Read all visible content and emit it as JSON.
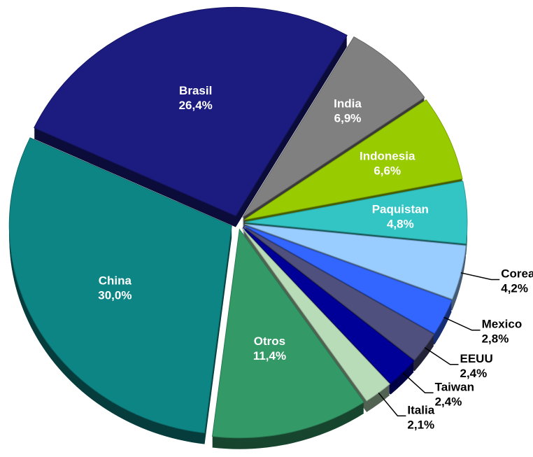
{
  "chart_data": {
    "type": "pie",
    "categories": [
      "Brasil",
      "India",
      "Indonesia",
      "Paquistan",
      "Corea",
      "Mexico",
      "EEUU",
      "Taiwan",
      "Italia",
      "Otros",
      "China"
    ],
    "values": [
      26.4,
      6.9,
      6.6,
      4.8,
      4.2,
      2.8,
      2.4,
      2.4,
      2.1,
      11.4,
      30.0
    ],
    "value_labels": [
      "26,4%",
      "6,9%",
      "6,6%",
      "4,8%",
      "4,2%",
      "2,8%",
      "2,4%",
      "2,4%",
      "2,1%",
      "11,4%",
      "30,0%"
    ],
    "colors": [
      "#1b1b80",
      "#808080",
      "#99cc00",
      "#33c4c4",
      "#99ccff",
      "#3366ff",
      "#50507e",
      "#000099",
      "#b8dcb8",
      "#339966",
      "#0e8585"
    ]
  }
}
